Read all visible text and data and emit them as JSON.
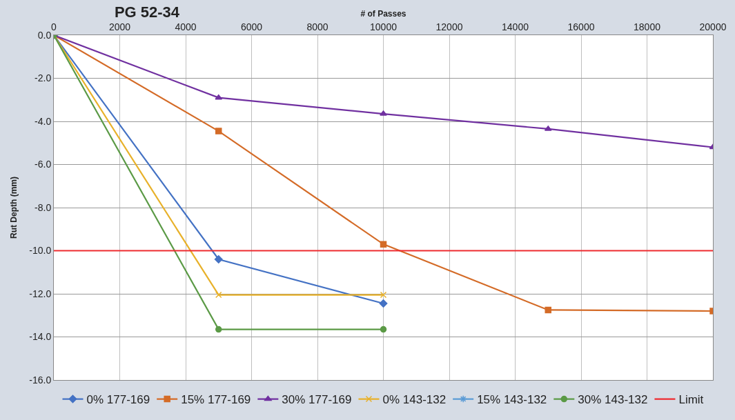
{
  "chart_data": {
    "type": "line",
    "title": "PG 52-34",
    "xlabel": "# of Passes",
    "ylabel": "Rut Depth (mm)",
    "xlim": [
      0,
      20000
    ],
    "xticks": [
      0,
      2000,
      4000,
      6000,
      8000,
      10000,
      12000,
      14000,
      16000,
      18000,
      20000
    ],
    "ylim": [
      -16,
      0
    ],
    "yticks": [
      {
        "value": 0,
        "label": "0.0"
      },
      {
        "value": -2,
        "label": "-2.0"
      },
      {
        "value": -4,
        "label": "-4.0"
      },
      {
        "value": -6,
        "label": "-6.0"
      },
      {
        "value": -8,
        "label": "-8.0"
      },
      {
        "value": -10,
        "label": "-10.0"
      },
      {
        "value": -12,
        "label": "-12.0"
      },
      {
        "value": -14,
        "label": "-14.0"
      },
      {
        "value": -16,
        "label": "-16.0"
      }
    ],
    "grid": true,
    "legend": "bottom",
    "series": [
      {
        "name": "0% 177-169",
        "color": "#4472c4",
        "marker": "diamond",
        "x": [
          0,
          5000,
          10000
        ],
        "values": [
          0,
          -10.4,
          -12.45
        ]
      },
      {
        "name": "15% 177-169",
        "color": "#d46b27",
        "marker": "square",
        "x": [
          0,
          5000,
          10000,
          15000,
          20000
        ],
        "values": [
          0,
          -4.45,
          -9.7,
          -12.75,
          -12.8
        ]
      },
      {
        "name": "30% 177-169",
        "color": "#7030a0",
        "marker": "triangle",
        "x": [
          0,
          5000,
          10000,
          15000,
          20000
        ],
        "values": [
          0,
          -2.9,
          -3.65,
          -4.35,
          -5.2
        ]
      },
      {
        "name": "0% 143-132",
        "color": "#e8b12a",
        "marker": "cross",
        "x": [
          0,
          5000,
          10000
        ],
        "values": [
          0,
          -12.05,
          -12.05
        ]
      },
      {
        "name": "15% 143-132",
        "color": "#5b9bd5",
        "marker": "star"
      },
      {
        "name": "30% 143-132",
        "color": "#5b9a46",
        "marker": "circle",
        "x": [
          0,
          5000,
          10000
        ],
        "values": [
          0,
          -13.65,
          -13.65
        ]
      },
      {
        "name": "Limit",
        "color": "#ee2a2f",
        "marker": "none",
        "x": [
          0,
          20000
        ],
        "values": [
          -10,
          -10
        ]
      }
    ]
  }
}
